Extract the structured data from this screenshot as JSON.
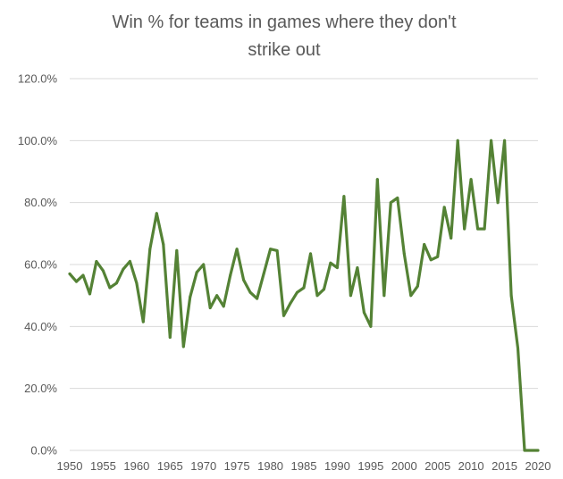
{
  "chart_data": {
    "type": "line",
    "title_lines": [
      "Win % for teams in games where they don't",
      "strike out"
    ],
    "xlabel": "",
    "ylabel": "",
    "x_ticks": [
      "1950",
      "1955",
      "1960",
      "1965",
      "1970",
      "1975",
      "1980",
      "1985",
      "1990",
      "1995",
      "2000",
      "2005",
      "2010",
      "2015",
      "2020"
    ],
    "y_ticks": [
      "0.0%",
      "20.0%",
      "40.0%",
      "60.0%",
      "80.0%",
      "100.0%",
      "120.0%"
    ],
    "xlim": [
      1950,
      2020
    ],
    "ylim": [
      0,
      120
    ],
    "y_unit": "percent",
    "grid": true,
    "legend": "none",
    "line_color": "#548235",
    "series": [
      {
        "x": [
          1950,
          1951,
          1952,
          1953,
          1954,
          1955,
          1956,
          1957,
          1958,
          1959,
          1960,
          1961,
          1962,
          1963,
          1964,
          1965,
          1966,
          1967,
          1968,
          1969,
          1970,
          1971,
          1972,
          1973,
          1974,
          1975,
          1976,
          1977,
          1978,
          1979,
          1980,
          1981,
          1982,
          1983,
          1984,
          1985,
          1986,
          1987,
          1988,
          1989,
          1990,
          1991,
          1992,
          1993,
          1994,
          1995,
          1996,
          1997,
          1998,
          1999,
          2000,
          2001,
          2002,
          2003,
          2004,
          2005,
          2006,
          2007,
          2008,
          2009,
          2010,
          2011,
          2012,
          2013,
          2014,
          2015,
          2016,
          2017,
          2018,
          2019,
          2020
        ],
        "values": [
          57,
          54.5,
          56.5,
          50.5,
          61,
          58,
          52.5,
          54,
          58.5,
          61,
          54,
          41.5,
          65,
          76.5,
          66.5,
          36.5,
          64.5,
          33.5,
          49.5,
          57.5,
          60,
          46,
          50,
          46.5,
          56.5,
          65,
          55,
          51,
          49,
          57,
          65,
          64.5,
          43.5,
          47.5,
          51,
          52.5,
          63.5,
          50,
          52,
          60.5,
          59,
          82,
          50,
          59,
          44.5,
          40,
          87.5,
          50,
          80,
          81.5,
          63.5,
          50,
          53,
          66.5,
          61.5,
          62.5,
          78.5,
          68.5,
          100,
          71.5,
          87.5,
          71.5,
          71.5,
          100,
          80,
          100,
          50,
          33,
          0,
          0,
          0
        ]
      }
    ]
  }
}
